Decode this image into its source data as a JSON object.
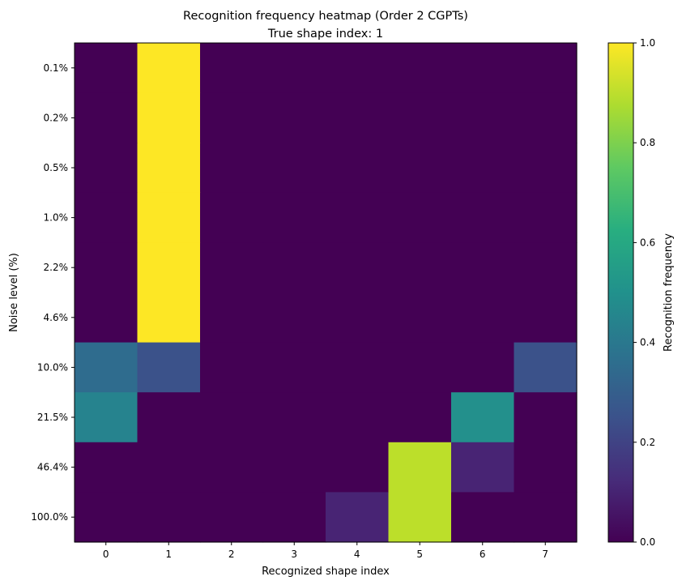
{
  "chart_data": {
    "type": "heatmap",
    "title": "Recognition frequency heatmap (Order 2 CGPTs)",
    "subtitle": "True shape index: 1",
    "xlabel": "Recognized shape index",
    "ylabel": "Noise level (%)",
    "x_categories": [
      "0",
      "1",
      "2",
      "3",
      "4",
      "5",
      "6",
      "7"
    ],
    "y_categories": [
      "0.1%",
      "0.2%",
      "0.5%",
      "1.0%",
      "2.2%",
      "4.6%",
      "10.0%",
      "21.5%",
      "46.4%",
      "100.0%"
    ],
    "values": [
      [
        0.0,
        1.0,
        0.0,
        0.0,
        0.0,
        0.0,
        0.0,
        0.0
      ],
      [
        0.0,
        1.0,
        0.0,
        0.0,
        0.0,
        0.0,
        0.0,
        0.0
      ],
      [
        0.0,
        1.0,
        0.0,
        0.0,
        0.0,
        0.0,
        0.0,
        0.0
      ],
      [
        0.0,
        1.0,
        0.0,
        0.0,
        0.0,
        0.0,
        0.0,
        0.0
      ],
      [
        0.0,
        1.0,
        0.0,
        0.0,
        0.0,
        0.0,
        0.0,
        0.0
      ],
      [
        0.0,
        1.0,
        0.0,
        0.0,
        0.0,
        0.0,
        0.0,
        0.0
      ],
      [
        0.35,
        0.25,
        0.0,
        0.0,
        0.0,
        0.0,
        0.0,
        0.25
      ],
      [
        0.45,
        0.0,
        0.0,
        0.0,
        0.0,
        0.0,
        0.5,
        0.0
      ],
      [
        0.0,
        0.0,
        0.0,
        0.0,
        0.0,
        0.9,
        0.1,
        0.0
      ],
      [
        0.0,
        0.0,
        0.0,
        0.0,
        0.1,
        0.9,
        0.0,
        0.0
      ]
    ],
    "colormap": "viridis",
    "vmin": 0.0,
    "vmax": 1.0,
    "colorbar": {
      "label": "Recognition frequency",
      "ticks": [
        "0.0",
        "0.2",
        "0.4",
        "0.6",
        "0.8",
        "1.0"
      ]
    }
  }
}
